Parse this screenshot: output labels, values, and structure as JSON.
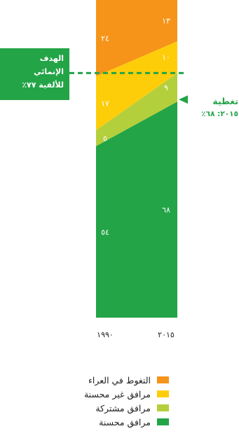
{
  "chart_data": {
    "type": "area",
    "x": [
      "١٩٩٠",
      "٢٠١٥"
    ],
    "series": [
      {
        "name": "مرافق محسنة",
        "values": [
          54,
          68
        ],
        "labels": [
          "٥٤",
          "٦٨"
        ],
        "color": "#23a447"
      },
      {
        "name": "مرافق مشتركة",
        "values": [
          5,
          9
        ],
        "labels": [
          "٥",
          "٩"
        ],
        "color": "#b4cf3c"
      },
      {
        "name": "مرافق غير محسنة",
        "values": [
          17,
          10
        ],
        "labels": [
          "١٧",
          "١٠"
        ],
        "color": "#fecd0a"
      },
      {
        "name": "التغوط في العراء",
        "values": [
          24,
          13
        ],
        "labels": [
          "٢٤",
          "١٣"
        ],
        "color": "#f59419"
      }
    ],
    "ylim": [
      0,
      100
    ],
    "legend_position": "bottom",
    "target_line": {
      "value": 77
    }
  },
  "annotations": {
    "goal": {
      "line1": "الهدف",
      "line2": "الإنمائي",
      "line3": "للألفية ٧٧٪"
    },
    "coverage": {
      "title": "تغطية",
      "value": "٢٠١٥: ٦٨٪"
    }
  },
  "legend": [
    {
      "label": "التغوط في العراء",
      "color": "#f59419"
    },
    {
      "label": "مرافق غير محسنة",
      "color": "#fecd0a"
    },
    {
      "label": "مرافق مشتركة",
      "color": "#b4cf3c"
    },
    {
      "label": "مرافق محسنة",
      "color": "#23a447"
    }
  ]
}
